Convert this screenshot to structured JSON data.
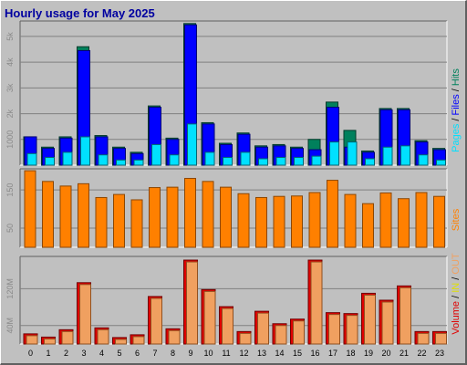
{
  "chart_data": [
    {
      "type": "bar",
      "title": "Hourly usage for May 2025",
      "categories": [
        "0",
        "1",
        "2",
        "3",
        "4",
        "5",
        "6",
        "7",
        "8",
        "9",
        "10",
        "11",
        "12",
        "13",
        "14",
        "15",
        "16",
        "17",
        "18",
        "19",
        "20",
        "21",
        "22",
        "23"
      ],
      "series": [
        {
          "name": "Hits",
          "color": "#00805c",
          "values": [
            1100,
            700,
            1100,
            4600,
            1150,
            700,
            500,
            2300,
            1050,
            5500,
            1650,
            850,
            1250,
            750,
            800,
            700,
            1000,
            2450,
            1350,
            550,
            2200,
            2200,
            950,
            650
          ]
        },
        {
          "name": "Files",
          "color": "#0000ff",
          "values": [
            1100,
            650,
            1050,
            4450,
            1100,
            650,
            450,
            2250,
            1000,
            5450,
            1600,
            800,
            1200,
            700,
            750,
            650,
            600,
            2250,
            700,
            500,
            2150,
            2150,
            900,
            600
          ]
        },
        {
          "name": "Pages",
          "color": "#00e0ff",
          "values": [
            450,
            300,
            500,
            1100,
            400,
            200,
            200,
            800,
            400,
            1600,
            500,
            300,
            500,
            250,
            300,
            300,
            350,
            900,
            900,
            250,
            700,
            750,
            400,
            200
          ]
        }
      ],
      "yticks": [
        "1000",
        "2k",
        "3k",
        "4k",
        "5k"
      ],
      "ylim": [
        0,
        5600
      ]
    },
    {
      "type": "bar",
      "categories": [
        "0",
        "1",
        "2",
        "3",
        "4",
        "5",
        "6",
        "7",
        "8",
        "9",
        "10",
        "11",
        "12",
        "13",
        "14",
        "15",
        "16",
        "17",
        "18",
        "19",
        "20",
        "21",
        "22",
        "23"
      ],
      "series": [
        {
          "name": "Sites",
          "color": "#ff8000",
          "values": [
            200,
            172,
            160,
            166,
            130,
            138,
            124,
            156,
            157,
            180,
            172,
            157,
            140,
            130,
            133,
            134,
            143,
            175,
            138,
            114,
            142,
            127,
            143,
            133
          ]
        }
      ],
      "yticks": [
        "50",
        "150"
      ],
      "ylim": [
        0,
        205
      ]
    },
    {
      "type": "bar",
      "categories": [
        "0",
        "1",
        "2",
        "3",
        "4",
        "5",
        "6",
        "7",
        "8",
        "9",
        "10",
        "11",
        "12",
        "13",
        "14",
        "15",
        "16",
        "17",
        "18",
        "19",
        "20",
        "21",
        "22",
        "23"
      ],
      "series": [
        {
          "name": "Volume",
          "color": "#e00000",
          "values": [
            22,
            15,
            31,
            133,
            35,
            14,
            20,
            103,
            33,
            182,
            118,
            81,
            27,
            71,
            44,
            54,
            182,
            68,
            66,
            110,
            95,
            126,
            27,
            27
          ]
        }
      ],
      "yticks": [
        "40M",
        "120M"
      ],
      "ylim": [
        0,
        190
      ]
    }
  ],
  "legend_top": [
    {
      "text": "Pages",
      "color": "#00e0ff"
    },
    {
      "text": " / ",
      "color": "#000000"
    },
    {
      "text": "Files",
      "color": "#0000ff"
    },
    {
      "text": " / ",
      "color": "#000000"
    },
    {
      "text": "Hits",
      "color": "#00805c"
    }
  ],
  "legend_mid": [
    {
      "text": "Sites",
      "color": "#ff8000"
    }
  ],
  "legend_bot": [
    {
      "text": "Volume",
      "color": "#e00000"
    },
    {
      "text": " / ",
      "color": "#000000"
    },
    {
      "text": "IN",
      "color": "#e0e000"
    },
    {
      "text": " / ",
      "color": "#000000"
    },
    {
      "text": "OUT",
      "color": "#f0a060"
    }
  ]
}
